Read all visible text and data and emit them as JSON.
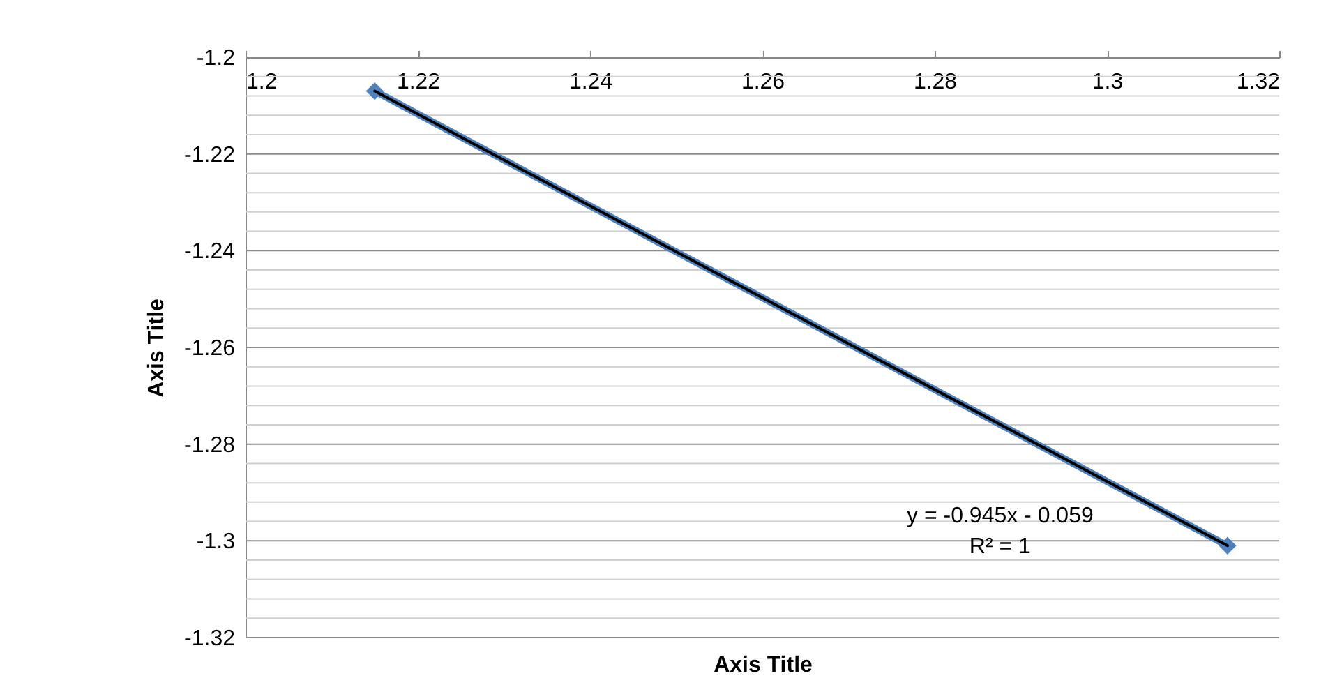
{
  "chart_data": {
    "type": "scatter",
    "xlabel": "Axis Title",
    "ylabel": "Axis Title",
    "xlim": [
      1.2,
      1.32
    ],
    "xticks": [
      1.2,
      1.22,
      1.24,
      1.26,
      1.28,
      1.3,
      1.32
    ],
    "ylim": [
      -1.32,
      -1.2
    ],
    "yticks": [
      -1.2,
      {
        "value": -1.204,
        "label": null
      },
      {
        "value": -1.208,
        "label": null
      },
      {
        "value": -1.212,
        "label": null
      },
      {
        "value": -1.216,
        "label": null
      },
      -1.22,
      {
        "value": -1.224,
        "label": null
      },
      {
        "value": -1.228,
        "label": null
      },
      {
        "value": -1.232,
        "label": null
      },
      {
        "value": -1.236,
        "label": null
      },
      -1.24,
      {
        "value": -1.244,
        "label": null
      },
      {
        "value": -1.248,
        "label": null
      },
      {
        "value": -1.252,
        "label": null
      },
      {
        "value": -1.256,
        "label": null
      },
      -1.26,
      {
        "value": -1.264,
        "label": null
      },
      {
        "value": -1.268,
        "label": null
      },
      {
        "value": -1.272,
        "label": null
      },
      {
        "value": -1.276,
        "label": null
      },
      -1.28,
      {
        "value": -1.284,
        "label": null
      },
      {
        "value": -1.288,
        "label": null
      },
      {
        "value": -1.292,
        "label": null
      },
      {
        "value": -1.296,
        "label": null
      },
      -1.3,
      {
        "value": -1.304,
        "label": null
      },
      {
        "value": -1.308,
        "label": null
      },
      {
        "value": -1.312,
        "label": null
      },
      {
        "value": -1.316,
        "label": null
      },
      -1.32
    ],
    "grid": "y",
    "marker": "diamond",
    "x": [
      1.215,
      1.314
    ],
    "series": [
      {
        "type": "line",
        "color": "#4f81bd",
        "values": [
          -1.207,
          -1.301
        ]
      },
      {
        "type": "line",
        "color": "#000000",
        "marker": "none",
        "values": [
          -1.207,
          -1.301
        ]
      }
    ],
    "annotations": [
      "y = -0.945x - 0.059",
      "R² = 1"
    ]
  }
}
